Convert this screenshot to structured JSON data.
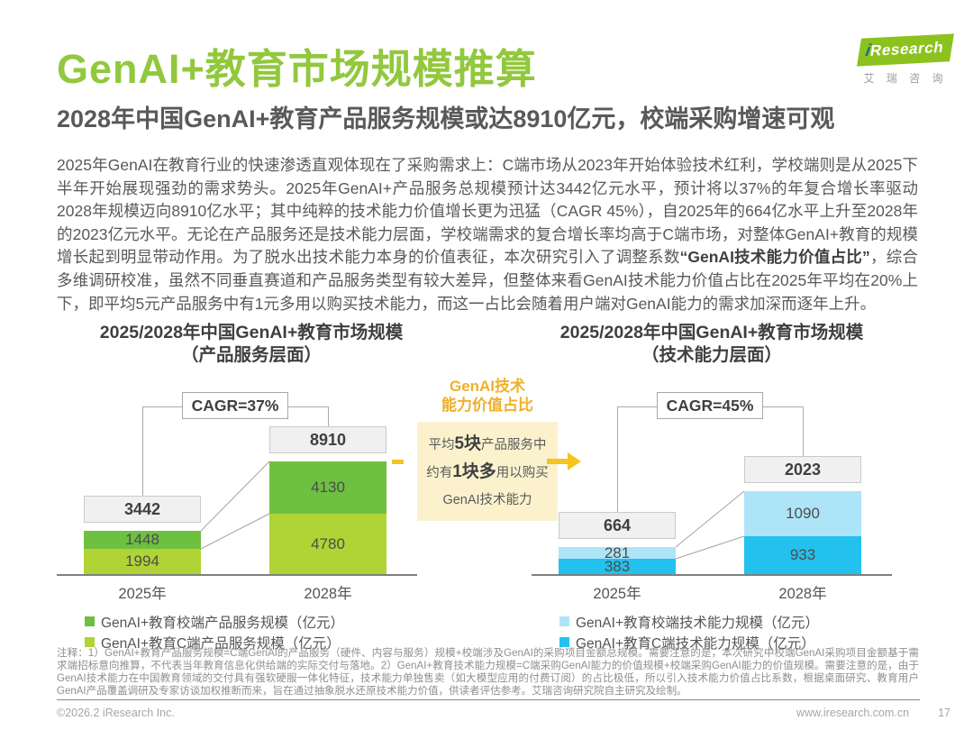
{
  "page": {
    "title": "GenAI+教育市场规模推算",
    "subtitle": "2028年中国GenAI+教育产品服务规模或达8910亿元，校端采购增速可观"
  },
  "logo": {
    "brand_i": "i",
    "brand": "Research",
    "brand_cn": "艾 瑞 咨 询",
    "brand_color": "#8CC21E"
  },
  "body": {
    "text_1": "2025年GenAI在教育行业的快速渗透直观体现在了采购需求上：C端市场从2023年开始体验技术红利，学校端则是从2025下半年开始展现强劲的需求势头。2025年GenAI+产品服务总规模预计达3442亿元水平，预计将以37%的年复合增长率驱动2028年规模迈向8910亿水平；其中纯粹的技术能力价值增长更为迅猛（CAGR 45%），自2025年的664亿水平上升至2028年的2023亿元水平。无论在产品服务还是技术能力层面，学校端需求的复合增长率均高于C端市场，对整体GenAI+教育的规模增长起到明显带动作用。为了脱水出技术能力本身的价值表征，本次研究引入了调整系数",
    "text_bold": "“GenAI技术能力价值占比”",
    "text_2": "，综合多维调研校准，虽然不同垂直赛道和产品服务类型有较大差异，但整体来看GenAI技术能力价值占比在2025年平均在20%上下，即平均5元产品服务中有1元多用以购买技术能力，而这一占比会随着用户端对GenAI能力的需求加深而逐年上升。"
  },
  "annotation": {
    "title_line1": "GenAI技术",
    "title_line2": "能力价值占比",
    "line1_pre": "平均",
    "line1_em": "5块",
    "line1_post": "产品服务中",
    "line2_pre": "约有",
    "line2_em": "1块多",
    "line2_post": "用以购买",
    "line3": "GenAI技术能力",
    "accent_color": "#F0AF28",
    "box_color": "#FBF2CD"
  },
  "chart_data": [
    {
      "type": "bar",
      "stacked": true,
      "title_line1": "2025/2028年中国GenAI+教育市场规模",
      "title_line2": "（产品服务层面）",
      "cagr_label": "CAGR=37%",
      "categories": [
        "2025年",
        "2028年"
      ],
      "totals": [
        3442,
        8910
      ],
      "series": [
        {
          "name": "GenAI+教育校端产品服务规模（亿元）",
          "values": [
            1448,
            4130
          ],
          "color": "#6EC040"
        },
        {
          "name": "GenAI+教育C端产品服务规模（亿元）",
          "values": [
            1994,
            4780
          ],
          "color": "#B0D336"
        }
      ],
      "unit": "亿元",
      "legend_position": "bottom",
      "grid": false
    },
    {
      "type": "bar",
      "stacked": true,
      "title_line1": "2025/2028年中国GenAI+教育市场规模",
      "title_line2": "（技术能力层面）",
      "cagr_label": "CAGR=45%",
      "categories": [
        "2025年",
        "2028年"
      ],
      "totals": [
        664,
        2023
      ],
      "series": [
        {
          "name": "GenAI+教育校端技术能力规模（亿元）",
          "values": [
            281,
            1090
          ],
          "color": "#AEE4F7"
        },
        {
          "name": "GenAI+教育C端技术能力规模（亿元）",
          "values": [
            383,
            933
          ],
          "color": "#23C1EE"
        }
      ],
      "unit": "亿元",
      "legend_position": "bottom",
      "grid": false
    }
  ],
  "footnote": "注释：1）GenAI+教育产品服务规模=C端GenAI的产品服务（硬件、内容与服务）规模+校端涉及GenAI的采购项目金额总规模。需要注意的是，本次研究中校端GenAI采购项目金额基于需求端招标意向推算，不代表当年教育信息化供给端的实际交付与落地。2）GenAI+教育技术能力规模=C端采购GenAI能力的价值规模+校端采购GenAI能力的价值规模。需要注意的是，由于GenAI技术能力在中国教育领域的交付具有强软硬服一体化特征，技术能力单独售卖（如大模型应用的付费订阅）的占比极低，所以引入技术能力价值占比系数，根据桌面研究、教育用户GenAI产品覆盖调研及专家访谈加权推断而来，旨在通过抽象脱水还原技术能力价值，供读者评估参考。艾瑞咨询研究院自主研究及绘制。",
  "footer": {
    "copyright": "©2026.2 iResearch Inc.",
    "website": "www.iresearch.com.cn",
    "page_number": "17"
  }
}
